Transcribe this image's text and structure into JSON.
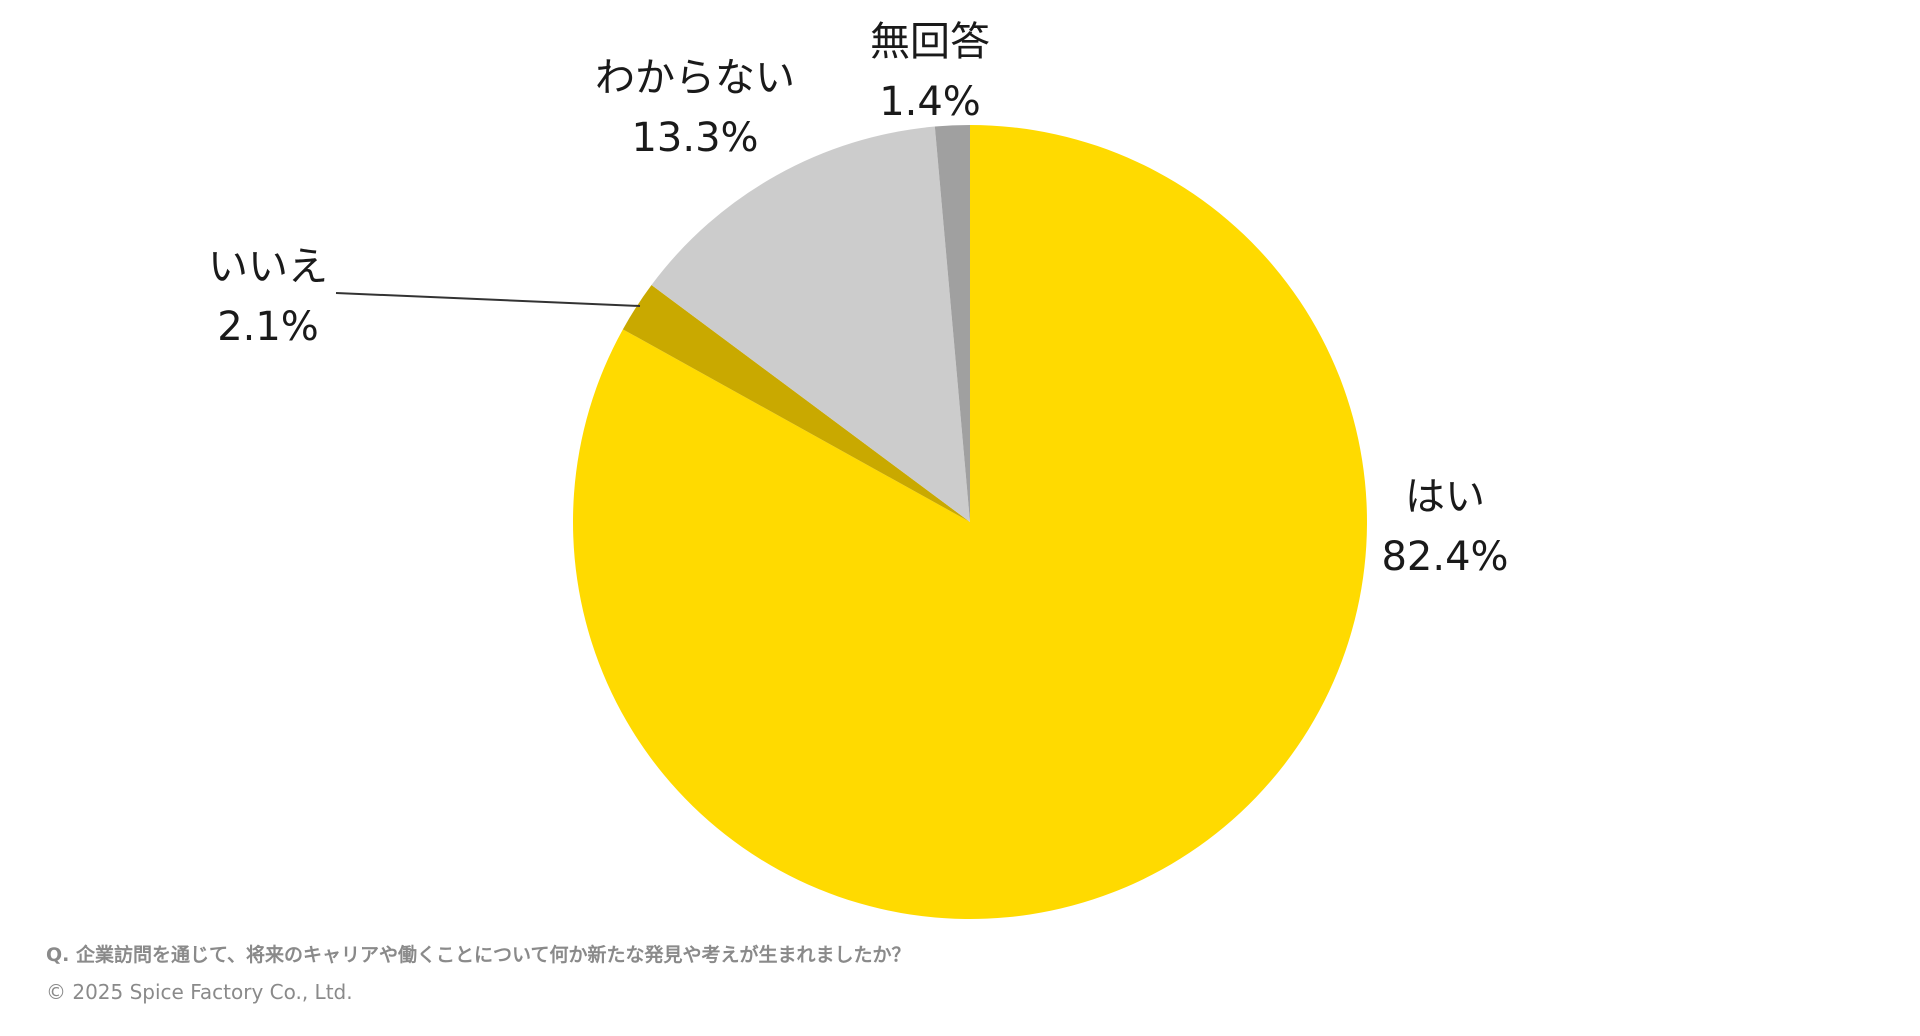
{
  "chart_data": {
    "type": "pie",
    "slices": [
      {
        "label": "はい",
        "value": 82.4,
        "value_label": "82.4%",
        "color": "#FFDA00"
      },
      {
        "label": "いいえ",
        "value": 2.1,
        "value_label": "2.1%",
        "color": "#C9A900"
      },
      {
        "label": "わからない",
        "value": 13.3,
        "value_label": "13.3%",
        "color": "#CCCCCC"
      },
      {
        "label": "無回答",
        "value": 1.4,
        "value_label": "1.4%",
        "color": "#A0A0A0"
      }
    ],
    "start": "12 o'clock",
    "direction": "clockwise",
    "legend": "none",
    "data_labels": "outside"
  },
  "footer": {
    "question": "Q. 企業訪問を通じて、将来のキャリアや働くことについて何か新たな発見や考えが生まれましたか？",
    "copyright": "© 2025 Spice Factory Co., Ltd."
  }
}
